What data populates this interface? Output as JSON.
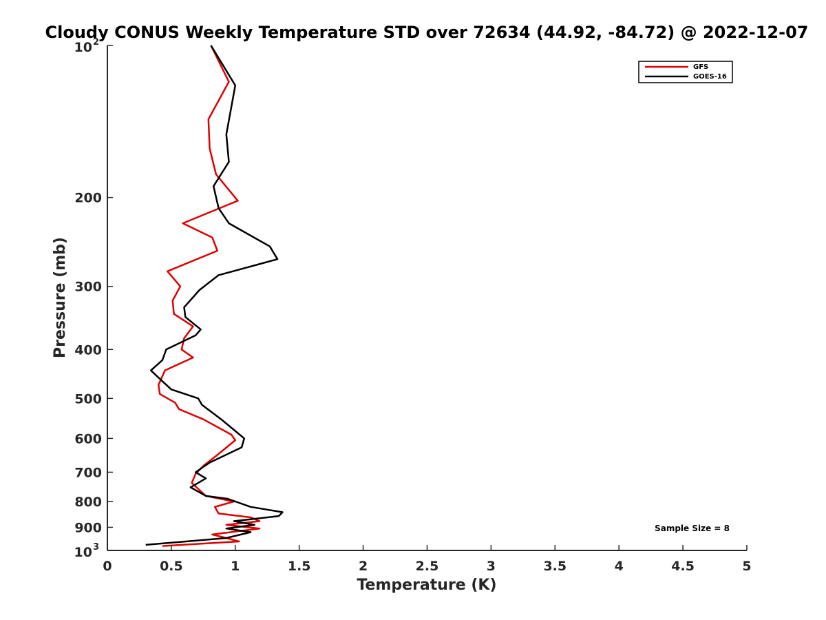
{
  "chart_data": {
    "type": "line",
    "title": "Cloudy CONUS Weekly Temperature STD over 72634 (44.92, -84.72) @ 2022-12-07",
    "xlabel": "Temperature (K)",
    "ylabel": "Pressure (mb)",
    "xlim": [
      0,
      5
    ],
    "ylim": [
      100,
      1000
    ],
    "y_scale": "log",
    "y_reversed": true,
    "x_ticks": [
      0,
      0.5,
      1,
      1.5,
      2,
      2.5,
      3,
      3.5,
      4,
      4.5,
      5
    ],
    "x_tick_labels": [
      "0",
      "0.5",
      "1",
      "1.5",
      "2",
      "2.5",
      "3",
      "3.5",
      "4",
      "4.5",
      "5"
    ],
    "y_ticks": [
      {
        "value": 100,
        "base": "10",
        "exp": "2"
      },
      {
        "value": 200,
        "label": "200"
      },
      {
        "value": 300,
        "label": "300"
      },
      {
        "value": 400,
        "label": "400"
      },
      {
        "value": 500,
        "label": "500"
      },
      {
        "value": 600,
        "label": "600"
      },
      {
        "value": 700,
        "label": "700"
      },
      {
        "value": 800,
        "label": "800"
      },
      {
        "value": 900,
        "label": "900"
      },
      {
        "value": 1000,
        "base": "10",
        "exp": "3"
      }
    ],
    "grid": false,
    "legend_position": "top-right",
    "series": [
      {
        "name": "GFS",
        "color": "#e00000",
        "points": [
          [
            0.81,
            100
          ],
          [
            0.95,
            118
          ],
          [
            0.79,
            140
          ],
          [
            0.8,
            160
          ],
          [
            0.85,
            180
          ],
          [
            1.02,
            203
          ],
          [
            0.59,
            225
          ],
          [
            0.82,
            240
          ],
          [
            0.86,
            255
          ],
          [
            0.47,
            280
          ],
          [
            0.57,
            300
          ],
          [
            0.51,
            320
          ],
          [
            0.52,
            340
          ],
          [
            0.67,
            360
          ],
          [
            0.6,
            380
          ],
          [
            0.58,
            400
          ],
          [
            0.67,
            415
          ],
          [
            0.45,
            440
          ],
          [
            0.4,
            470
          ],
          [
            0.41,
            490
          ],
          [
            0.53,
            510
          ],
          [
            0.56,
            525
          ],
          [
            0.75,
            550
          ],
          [
            0.97,
            590
          ],
          [
            1.0,
            605
          ],
          [
            0.85,
            650
          ],
          [
            0.75,
            680
          ],
          [
            0.69,
            705
          ],
          [
            0.66,
            735
          ],
          [
            0.77,
            780
          ],
          [
            0.99,
            800
          ],
          [
            0.84,
            820
          ],
          [
            0.87,
            845
          ],
          [
            1.12,
            860
          ],
          [
            1.19,
            875
          ],
          [
            0.93,
            890
          ],
          [
            1.19,
            905
          ],
          [
            0.82,
            930
          ],
          [
            0.93,
            945
          ],
          [
            1.03,
            960
          ],
          [
            0.43,
            980
          ]
        ]
      },
      {
        "name": "GOES-16",
        "color": "#000000",
        "points": [
          [
            0.81,
            100
          ],
          [
            1.0,
            120
          ],
          [
            0.93,
            150
          ],
          [
            0.95,
            170
          ],
          [
            0.83,
            190
          ],
          [
            0.87,
            210
          ],
          [
            0.95,
            225
          ],
          [
            1.27,
            250
          ],
          [
            1.33,
            265
          ],
          [
            0.87,
            285
          ],
          [
            0.72,
            305
          ],
          [
            0.6,
            330
          ],
          [
            0.61,
            345
          ],
          [
            0.73,
            365
          ],
          [
            0.69,
            375
          ],
          [
            0.46,
            400
          ],
          [
            0.43,
            420
          ],
          [
            0.34,
            440
          ],
          [
            0.44,
            465
          ],
          [
            0.5,
            480
          ],
          [
            0.71,
            500
          ],
          [
            0.74,
            515
          ],
          [
            0.89,
            550
          ],
          [
            1.0,
            580
          ],
          [
            1.07,
            600
          ],
          [
            1.05,
            625
          ],
          [
            0.8,
            670
          ],
          [
            0.69,
            700
          ],
          [
            0.77,
            720
          ],
          [
            0.65,
            750
          ],
          [
            0.77,
            780
          ],
          [
            0.94,
            790
          ],
          [
            1.12,
            820
          ],
          [
            1.37,
            840
          ],
          [
            1.34,
            855
          ],
          [
            0.99,
            875
          ],
          [
            1.15,
            890
          ],
          [
            0.93,
            905
          ],
          [
            1.12,
            920
          ],
          [
            0.93,
            945
          ],
          [
            0.3,
            975
          ]
        ]
      }
    ],
    "annotation": "Sample Size = 8"
  }
}
